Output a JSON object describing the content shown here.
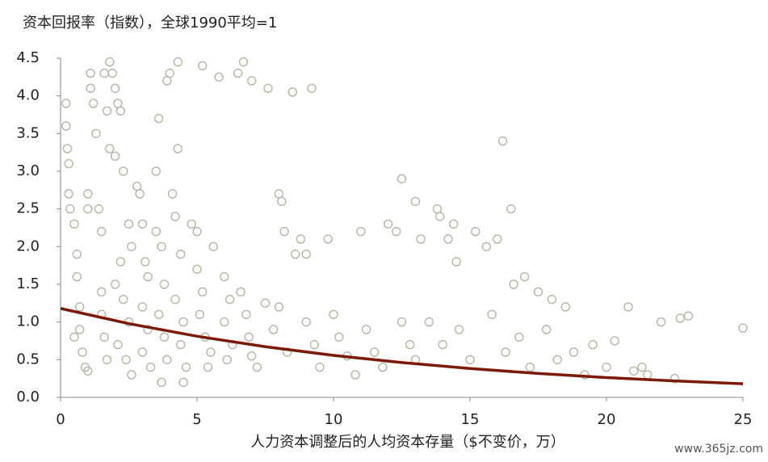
{
  "chart_data": {
    "type": "scatter",
    "title": "资本回报率（指数），全球1990平均=1",
    "x_label": "人力资本调整后的人均资本存量（$不变价，万）",
    "watermark": "www.365jz.com",
    "xlim": [
      0,
      25
    ],
    "xticks": [
      0,
      5,
      10,
      15,
      20,
      25
    ],
    "ylim": [
      0,
      4.5
    ],
    "yticks": [
      {
        "value": 0,
        "label": "0.0"
      },
      0.5,
      {
        "value": 1,
        "label": "1.0"
      },
      1.5,
      {
        "value": 2,
        "label": "2.0"
      },
      2.5,
      {
        "value": 3,
        "label": "3.0"
      },
      3.5,
      {
        "value": 4,
        "label": "4.0"
      },
      4.5
    ],
    "grid": false,
    "series": [
      {
        "type": "scatter",
        "color": "#b9b9aa",
        "x": [
          0.2,
          0.2,
          0.25,
          0.3,
          0.3,
          0.35,
          0.5,
          0.6,
          0.6,
          0.7,
          0.5,
          0.8,
          0.9,
          1.0,
          0.7,
          1.0,
          1.0,
          1.1,
          1.1,
          1.2,
          1.3,
          1.4,
          1.5,
          1.5,
          1.5,
          1.6,
          1.7,
          1.6,
          1.7,
          1.8,
          1.9,
          2.0,
          2.1,
          2.2,
          1.8,
          2.0,
          2.3,
          2.5,
          2.6,
          2.2,
          2.0,
          2.3,
          2.5,
          2.1,
          2.4,
          2.6,
          2.8,
          2.9,
          3.0,
          3.1,
          3.2,
          3.0,
          3.2,
          3.0,
          3.3,
          3.5,
          3.5,
          3.6,
          3.7,
          3.8,
          3.6,
          3.8,
          3.9,
          3.7,
          3.9,
          4.0,
          4.1,
          4.2,
          4.3,
          4.3,
          4.4,
          4.2,
          4.5,
          4.4,
          4.6,
          4.5,
          4.8,
          5.0,
          5.2,
          5.0,
          5.2,
          5.1,
          5.3,
          5.5,
          5.4,
          5.6,
          5.8,
          6.0,
          6.2,
          6.0,
          6.3,
          6.1,
          6.5,
          6.7,
          6.6,
          6.8,
          6.9,
          7.0,
          7.0,
          7.2,
          7.5,
          7.6,
          7.8,
          8.0,
          8.1,
          8.2,
          8.0,
          8.3,
          8.5,
          8.6,
          8.8,
          9.0,
          9.2,
          9.0,
          9.3,
          9.5,
          9.8,
          10.0,
          10.2,
          10.5,
          10.8,
          11.0,
          11.2,
          11.5,
          11.8,
          12.0,
          12.3,
          12.5,
          12.5,
          12.8,
          13.0,
          13.0,
          13.2,
          13.5,
          13.8,
          13.9,
          14.0,
          14.2,
          14.4,
          14.5,
          14.6,
          15.0,
          15.2,
          15.6,
          15.8,
          16.0,
          16.2,
          16.3,
          16.5,
          16.6,
          16.8,
          17.0,
          17.2,
          17.5,
          17.8,
          18.0,
          18.2,
          18.5,
          18.8,
          19.2,
          19.5,
          20.0,
          20.3,
          20.8,
          21.0,
          21.3,
          21.5,
          22.0,
          22.5,
          22.7,
          23.0,
          25.0
        ],
        "values": [
          3.9,
          3.6,
          3.3,
          3.1,
          2.7,
          2.5,
          2.3,
          1.9,
          1.6,
          1.2,
          0.8,
          0.6,
          0.4,
          0.35,
          0.9,
          2.7,
          2.5,
          4.3,
          4.1,
          3.9,
          3.5,
          2.5,
          2.2,
          1.4,
          1.1,
          0.8,
          0.5,
          4.3,
          3.8,
          4.45,
          4.3,
          4.1,
          3.9,
          3.8,
          3.3,
          3.2,
          3.0,
          2.3,
          2.0,
          1.8,
          1.5,
          1.3,
          1.0,
          0.7,
          0.5,
          0.3,
          2.8,
          2.7,
          2.3,
          1.8,
          1.6,
          1.2,
          0.9,
          0.6,
          0.4,
          3.0,
          2.2,
          3.7,
          2.0,
          1.5,
          1.1,
          0.8,
          0.5,
          0.2,
          4.2,
          4.3,
          2.7,
          2.4,
          4.45,
          3.3,
          1.9,
          1.3,
          1.0,
          0.7,
          0.4,
          0.2,
          2.3,
          2.2,
          4.4,
          1.7,
          1.4,
          1.1,
          0.8,
          0.6,
          0.4,
          2.0,
          4.25,
          1.6,
          1.3,
          1.0,
          0.7,
          0.5,
          4.3,
          4.45,
          1.4,
          1.1,
          0.8,
          4.2,
          0.55,
          0.4,
          1.25,
          4.1,
          0.9,
          2.7,
          2.6,
          2.2,
          1.2,
          0.6,
          4.05,
          1.9,
          2.1,
          1.9,
          4.1,
          1.0,
          0.7,
          0.4,
          2.1,
          1.1,
          0.8,
          0.55,
          0.3,
          2.2,
          0.9,
          0.6,
          0.4,
          2.3,
          2.2,
          2.9,
          1.0,
          0.7,
          0.5,
          2.6,
          2.1,
          1.0,
          2.5,
          2.4,
          0.7,
          2.1,
          2.3,
          1.8,
          0.9,
          0.5,
          2.2,
          2.0,
          1.1,
          2.1,
          3.4,
          0.6,
          2.5,
          1.5,
          0.8,
          1.6,
          0.4,
          1.4,
          0.9,
          1.3,
          0.5,
          1.2,
          0.6,
          0.3,
          0.7,
          0.4,
          0.75,
          1.2,
          0.35,
          0.4,
          0.3,
          1.0,
          0.25,
          1.05,
          1.08,
          0.92
        ]
      },
      {
        "type": "line",
        "color": "#7b1a06",
        "x": [
          0,
          2.5,
          5,
          7.5,
          10,
          12.5,
          15,
          17.5,
          20,
          22.5,
          25
        ],
        "values": [
          1.18,
          0.978,
          0.811,
          0.672,
          0.557,
          0.462,
          0.383,
          0.317,
          0.263,
          0.218,
          0.181
        ]
      }
    ]
  }
}
